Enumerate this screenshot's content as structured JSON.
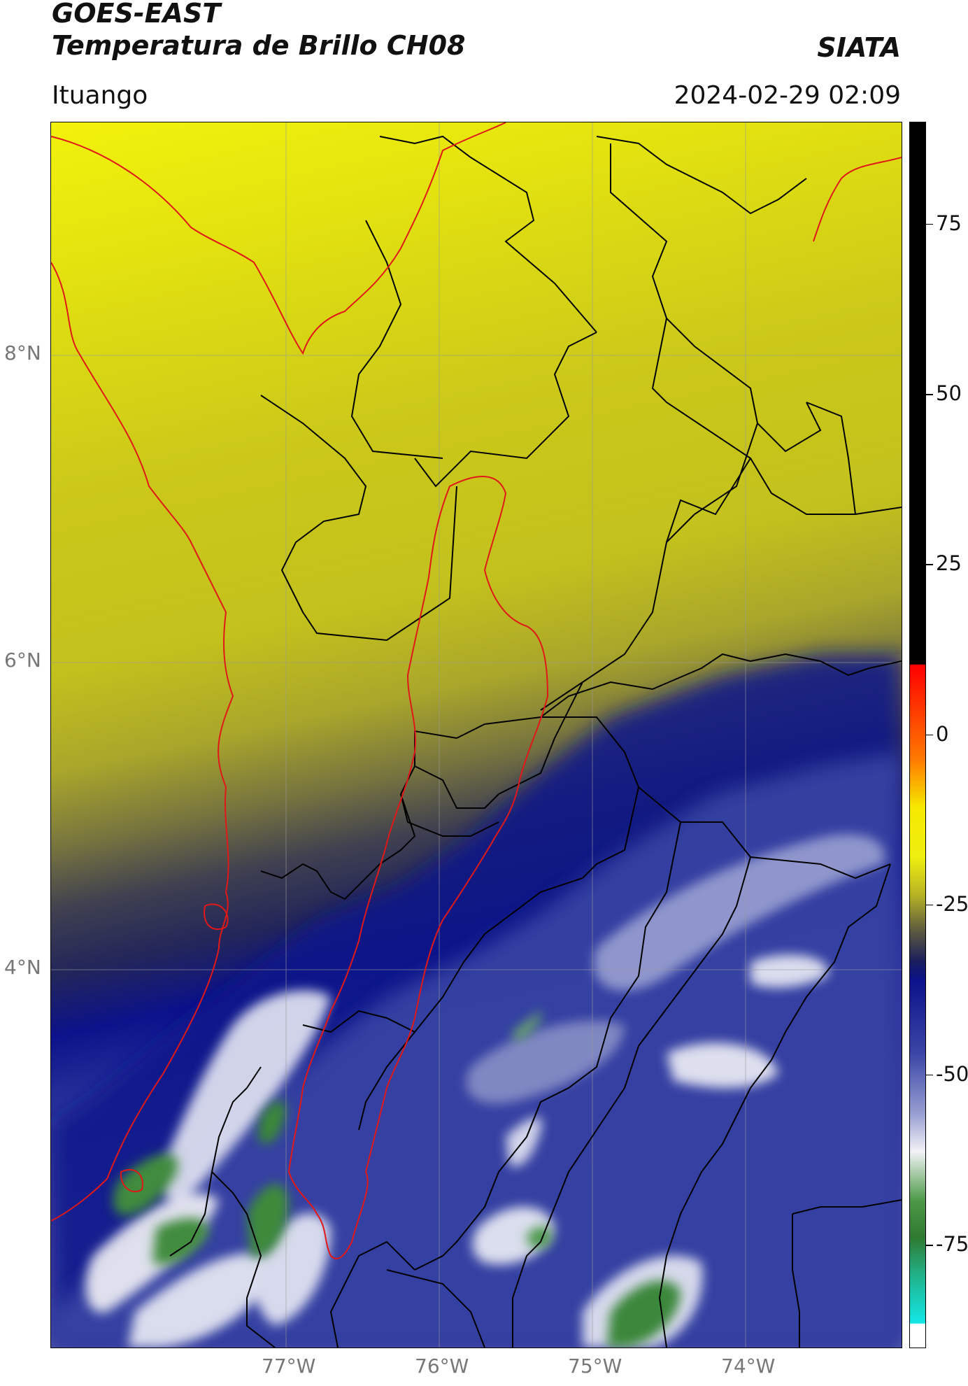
{
  "header": {
    "title_line1": "GOES-EAST",
    "title_line2": "Temperatura de Brillo CH08",
    "brand": "SIATA",
    "location": "Ituango",
    "timestamp": "2024-02-29 02:09"
  },
  "map": {
    "lat_labels": [
      "8°N",
      "6°N",
      "4°N"
    ],
    "lon_labels": [
      "77°W",
      "76°W",
      "75°W",
      "74°W"
    ],
    "field_colors": {
      "warm_yellow": "#eef00e",
      "olive": "#b9b71f",
      "dark_olive": "#6d6a3e",
      "slate": "#3a3c55",
      "navy": "#0c128a",
      "blue": "#3b46a6",
      "lavender": "#8990c6",
      "white": "#f2f2f6",
      "green": "#3f8b3d",
      "dark_green": "#2f7a31"
    },
    "boundary_colors": {
      "region_outline": "#e01818",
      "department_lines": "#000000"
    }
  },
  "colorbar": {
    "ticks": [
      "75",
      "50",
      "25",
      "0",
      "-25",
      "-50",
      "-75"
    ],
    "value_min": -90,
    "value_max": 90
  }
}
